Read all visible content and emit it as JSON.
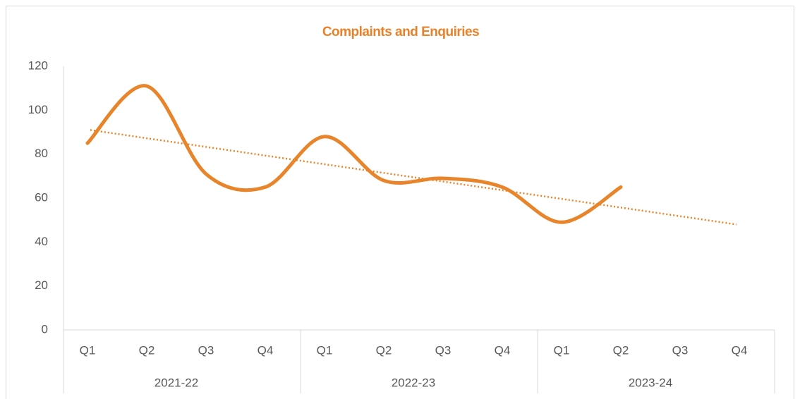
{
  "chart_data": {
    "type": "line",
    "title": "Complaints and Enquiries",
    "title_color": "#e8822a",
    "categories": [
      "Q1",
      "Q2",
      "Q3",
      "Q4",
      "Q1",
      "Q2",
      "Q3",
      "Q4",
      "Q1",
      "Q2",
      "Q3",
      "Q4"
    ],
    "groups": [
      "2021-22",
      "2022-23",
      "2023-24"
    ],
    "series": [
      {
        "color": "#e8842a",
        "values": [
          85,
          111,
          71,
          65,
          88,
          68,
          69,
          65,
          49,
          65,
          null,
          null
        ]
      }
    ],
    "trendline": {
      "style": "dotted",
      "color": "#e8842a",
      "start": 91,
      "end": 48
    },
    "ylim": [
      0,
      120
    ],
    "yticks": [
      0,
      20,
      40,
      60,
      80,
      100,
      120
    ],
    "grid": false
  }
}
